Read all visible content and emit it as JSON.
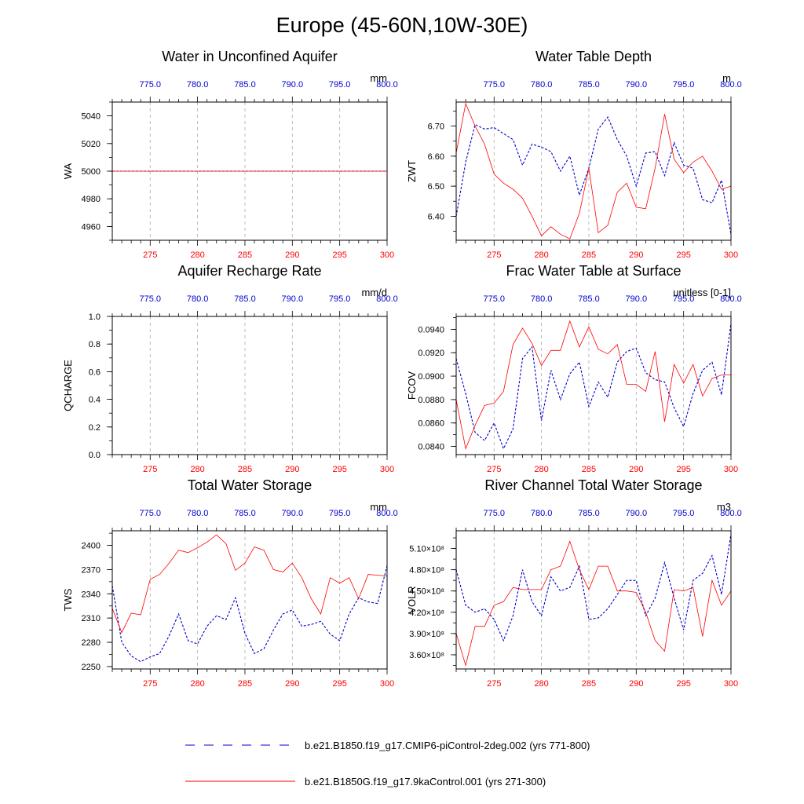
{
  "figure_title": "Europe (45-60N,10W-30E)",
  "colors": {
    "case1": "#0000cc",
    "case2": "#ff0000",
    "grid": "#aaaaaa"
  },
  "legend": [
    {
      "label": "b.e21.B1850.f19_g17.CMIP6-piControl-2deg.002 (yrs 771-800)",
      "color": "#0000cc",
      "style": "dashed"
    },
    {
      "label": "b.e21.B1850G.f19_g17.9kaControl.001 (yrs 271-300)",
      "color": "#ff0000",
      "style": "solid"
    }
  ],
  "chart_data": [
    {
      "type": "line",
      "title": "Water in Unconfined Aquifer",
      "ylabel": "WA",
      "units": "mm",
      "x_bottom": [
        271,
        272,
        273,
        274,
        275,
        276,
        277,
        278,
        279,
        280,
        281,
        282,
        283,
        284,
        285,
        286,
        287,
        288,
        289,
        290,
        291,
        292,
        293,
        294,
        295,
        296,
        297,
        298,
        299,
        300
      ],
      "x_top": [
        771,
        772,
        773,
        774,
        775,
        776,
        777,
        778,
        779,
        780,
        781,
        782,
        783,
        784,
        785,
        786,
        787,
        788,
        789,
        790,
        791,
        792,
        793,
        794,
        795,
        796,
        797,
        798,
        799,
        800
      ],
      "xlim": [
        271,
        300
      ],
      "ylim": [
        4950,
        5050
      ],
      "yticks": [
        "4960",
        "4980",
        "5000",
        "5020",
        "5040"
      ],
      "ytick_values": [
        4960,
        4980,
        5000,
        5020,
        5040
      ],
      "xticks_bottom": [
        "275",
        "280",
        "285",
        "290",
        "295",
        "300"
      ],
      "xticks_top": [
        "775.0",
        "780.0",
        "785.0",
        "790.0",
        "795.0",
        "800.0"
      ],
      "series": [
        {
          "values": [
            5000,
            5000,
            5000,
            5000,
            5000,
            5000,
            5000,
            5000,
            5000,
            5000,
            5000,
            5000,
            5000,
            5000,
            5000,
            5000,
            5000,
            5000,
            5000,
            5000,
            5000,
            5000,
            5000,
            5000,
            5000,
            5000,
            5000,
            5000,
            5000,
            5000
          ]
        },
        {
          "values": [
            5000,
            5000,
            5000,
            5000,
            5000,
            5000,
            5000,
            5000,
            5000,
            5000,
            5000,
            5000,
            5000,
            5000,
            5000,
            5000,
            5000,
            5000,
            5000,
            5000,
            5000,
            5000,
            5000,
            5000,
            5000,
            5000,
            5000,
            5000,
            5000,
            5000
          ]
        }
      ]
    },
    {
      "type": "line",
      "title": "Water Table Depth",
      "ylabel": "ZWT",
      "units": "m",
      "x_bottom": [
        271,
        272,
        273,
        274,
        275,
        276,
        277,
        278,
        279,
        280,
        281,
        282,
        283,
        284,
        285,
        286,
        287,
        288,
        289,
        290,
        291,
        292,
        293,
        294,
        295,
        296,
        297,
        298,
        299,
        300
      ],
      "x_top": [
        771,
        772,
        773,
        774,
        775,
        776,
        777,
        778,
        779,
        780,
        781,
        782,
        783,
        784,
        785,
        786,
        787,
        788,
        789,
        790,
        791,
        792,
        793,
        794,
        795,
        796,
        797,
        798,
        799,
        800
      ],
      "xlim": [
        271,
        300
      ],
      "ylim": [
        6.32,
        6.78
      ],
      "yticks": [
        "6.40",
        "6.50",
        "6.60",
        "6.70"
      ],
      "ytick_values": [
        6.4,
        6.5,
        6.6,
        6.7
      ],
      "xticks_bottom": [
        "275",
        "280",
        "285",
        "290",
        "295",
        "300"
      ],
      "xticks_top": [
        "775.0",
        "780.0",
        "785.0",
        "790.0",
        "795.0",
        "800.0"
      ],
      "series": [
        {
          "values": [
            6.4,
            6.58,
            6.705,
            6.69,
            6.695,
            6.675,
            6.655,
            6.57,
            6.64,
            6.63,
            6.615,
            6.55,
            6.6,
            6.47,
            6.56,
            6.69,
            6.73,
            6.655,
            6.6,
            6.5,
            6.61,
            6.615,
            6.535,
            6.645,
            6.57,
            6.56,
            6.455,
            6.445,
            6.52,
            6.34
          ]
        },
        {
          "values": [
            6.61,
            6.775,
            6.7,
            6.64,
            6.54,
            6.51,
            6.49,
            6.46,
            6.4,
            6.335,
            6.365,
            6.34,
            6.325,
            6.41,
            6.56,
            6.345,
            6.37,
            6.48,
            6.51,
            6.43,
            6.425,
            6.56,
            6.74,
            6.59,
            6.545,
            6.58,
            6.6,
            6.55,
            6.49,
            6.5
          ]
        }
      ]
    },
    {
      "type": "line",
      "title": "Aquifer Recharge Rate",
      "ylabel": "QCHARGE",
      "units": "mm/d",
      "x_bottom": [
        271,
        272,
        273,
        274,
        275,
        276,
        277,
        278,
        279,
        280,
        281,
        282,
        283,
        284,
        285,
        286,
        287,
        288,
        289,
        290,
        291,
        292,
        293,
        294,
        295,
        296,
        297,
        298,
        299,
        300
      ],
      "x_top": [
        771,
        772,
        773,
        774,
        775,
        776,
        777,
        778,
        779,
        780,
        781,
        782,
        783,
        784,
        785,
        786,
        787,
        788,
        789,
        790,
        791,
        792,
        793,
        794,
        795,
        796,
        797,
        798,
        799,
        800
      ],
      "xlim": [
        271,
        300
      ],
      "ylim": [
        0,
        1
      ],
      "yticks": [
        "0.0",
        "0.2",
        "0.4",
        "0.6",
        "0.8",
        "1.0"
      ],
      "ytick_values": [
        0,
        0.2,
        0.4,
        0.6,
        0.8,
        1.0
      ],
      "xticks_bottom": [
        "275",
        "280",
        "285",
        "290",
        "295",
        "300"
      ],
      "xticks_top": [
        "775.0",
        "780.0",
        "785.0",
        "790.0",
        "795.0",
        "800.0"
      ],
      "series": []
    },
    {
      "type": "line",
      "title": "Frac Water Table at Surface",
      "ylabel": "FCOV",
      "units": "unitless [0-1]",
      "x_bottom": [
        271,
        272,
        273,
        274,
        275,
        276,
        277,
        278,
        279,
        280,
        281,
        282,
        283,
        284,
        285,
        286,
        287,
        288,
        289,
        290,
        291,
        292,
        293,
        294,
        295,
        296,
        297,
        298,
        299,
        300
      ],
      "x_top": [
        771,
        772,
        773,
        774,
        775,
        776,
        777,
        778,
        779,
        780,
        781,
        782,
        783,
        784,
        785,
        786,
        787,
        788,
        789,
        790,
        791,
        792,
        793,
        794,
        795,
        796,
        797,
        798,
        799,
        800
      ],
      "xlim": [
        271,
        300
      ],
      "ylim": [
        0.0833,
        0.0951
      ],
      "yticks": [
        "0.0840",
        "0.0860",
        "0.0880",
        "0.0900",
        "0.0920",
        "0.0940"
      ],
      "ytick_values": [
        0.084,
        0.086,
        0.088,
        0.09,
        0.092,
        0.094
      ],
      "xticks_bottom": [
        "275",
        "280",
        "285",
        "290",
        "295",
        "300"
      ],
      "xticks_top": [
        "775.0",
        "780.0",
        "785.0",
        "790.0",
        "795.0",
        "800.0"
      ],
      "series": [
        {
          "values": [
            0.0915,
            0.0885,
            0.0852,
            0.0845,
            0.086,
            0.0838,
            0.0855,
            0.0915,
            0.0925,
            0.0862,
            0.0905,
            0.088,
            0.0902,
            0.0912,
            0.0874,
            0.0895,
            0.0882,
            0.0912,
            0.0921,
            0.0924,
            0.0903,
            0.0897,
            0.0895,
            0.0873,
            0.0857,
            0.0885,
            0.0905,
            0.0912,
            0.0884,
            0.0945
          ]
        },
        {
          "values": [
            0.088,
            0.0838,
            0.0858,
            0.0875,
            0.0877,
            0.0887,
            0.0927,
            0.0941,
            0.0928,
            0.0909,
            0.0922,
            0.0922,
            0.0947,
            0.0925,
            0.0942,
            0.0923,
            0.0919,
            0.0927,
            0.0893,
            0.0893,
            0.0887,
            0.0921,
            0.0861,
            0.091,
            0.0894,
            0.091,
            0.0883,
            0.0898,
            0.0901,
            0.0901
          ]
        }
      ]
    },
    {
      "type": "line",
      "title": "Total Water Storage",
      "ylabel": "TWS",
      "units": "mm",
      "x_bottom": [
        271,
        272,
        273,
        274,
        275,
        276,
        277,
        278,
        279,
        280,
        281,
        282,
        283,
        284,
        285,
        286,
        287,
        288,
        289,
        290,
        291,
        292,
        293,
        294,
        295,
        296,
        297,
        298,
        299,
        300
      ],
      "x_top": [
        771,
        772,
        773,
        774,
        775,
        776,
        777,
        778,
        779,
        780,
        781,
        782,
        783,
        784,
        785,
        786,
        787,
        788,
        789,
        790,
        791,
        792,
        793,
        794,
        795,
        796,
        797,
        798,
        799,
        800
      ],
      "xlim": [
        271,
        300
      ],
      "ylim": [
        2247,
        2418
      ],
      "yticks": [
        "2250",
        "2280",
        "2310",
        "2340",
        "2370",
        "2400"
      ],
      "ytick_values": [
        2250,
        2280,
        2310,
        2340,
        2370,
        2400
      ],
      "xticks_bottom": [
        "275",
        "280",
        "285",
        "290",
        "295",
        "300"
      ],
      "xticks_top": [
        "775.0",
        "780.0",
        "785.0",
        "790.0",
        "795.0",
        "800.0"
      ],
      "series": [
        {
          "values": [
            2350,
            2280,
            2263,
            2256,
            2262,
            2266,
            2288,
            2315,
            2282,
            2278,
            2300,
            2313,
            2308,
            2335,
            2291,
            2266,
            2272,
            2295,
            2315,
            2320,
            2300,
            2302,
            2306,
            2290,
            2282,
            2315,
            2335,
            2330,
            2328,
            2375
          ]
        },
        {
          "values": [
            2322,
            2292,
            2316,
            2314,
            2358,
            2364,
            2378,
            2394,
            2391,
            2397,
            2404,
            2413,
            2402,
            2369,
            2378,
            2398,
            2394,
            2370,
            2367,
            2378,
            2360,
            2334,
            2315,
            2360,
            2353,
            2360,
            2334,
            2364,
            2363,
            2362
          ]
        }
      ]
    },
    {
      "type": "line",
      "title": "River Channel Total Water Storage",
      "ylabel": "VOLR",
      "units": "m3",
      "x_bottom": [
        271,
        272,
        273,
        274,
        275,
        276,
        277,
        278,
        279,
        280,
        281,
        282,
        283,
        284,
        285,
        286,
        287,
        288,
        289,
        290,
        291,
        292,
        293,
        294,
        295,
        296,
        297,
        298,
        299,
        300
      ],
      "x_top": [
        771,
        772,
        773,
        774,
        775,
        776,
        777,
        778,
        779,
        780,
        781,
        782,
        783,
        784,
        785,
        786,
        787,
        788,
        789,
        790,
        791,
        792,
        793,
        794,
        795,
        796,
        797,
        798,
        799,
        800
      ],
      "xlim": [
        271,
        300
      ],
      "ylim": [
        340000000.0,
        535000000.0
      ],
      "yticks": [
        "3.60×10⁸",
        "3.90×10⁸",
        "4.20×10⁸",
        "4.50×10⁸",
        "4.80×10⁸",
        "5.10×10⁸"
      ],
      "ytick_values": [
        360000000.0,
        390000000.0,
        420000000.0,
        450000000.0,
        480000000.0,
        510000000.0
      ],
      "xticks_bottom": [
        "275",
        "280",
        "285",
        "290",
        "295",
        "300"
      ],
      "xticks_top": [
        "775.0",
        "780.0",
        "785.0",
        "790.0",
        "795.0",
        "800.0"
      ],
      "series": [
        {
          "values": [
            480000000.0,
            430000000.0,
            420000000.0,
            425000000.0,
            410000000.0,
            380000000.0,
            415000000.0,
            480000000.0,
            435000000.0,
            415000000.0,
            470000000.0,
            450000000.0,
            455000000.0,
            485000000.0,
            410000000.0,
            412000000.0,
            425000000.0,
            445000000.0,
            465000000.0,
            465000000.0,
            415000000.0,
            440000000.0,
            490000000.0,
            440000000.0,
            395000000.0,
            465000000.0,
            475000000.0,
            500000000.0,
            445000000.0,
            530000000.0
          ]
        },
        {
          "values": [
            390000000.0,
            345000000.0,
            400000000.0,
            400000000.0,
            430000000.0,
            435000000.0,
            455000000.0,
            452000000.0,
            452000000.0,
            452000000.0,
            480000000.0,
            485000000.0,
            520000000.0,
            480000000.0,
            452000000.0,
            485000000.0,
            485000000.0,
            450000000.0,
            450000000.0,
            448000000.0,
            420000000.0,
            380000000.0,
            365000000.0,
            452000000.0,
            450000000.0,
            455000000.0,
            386000000.0,
            465000000.0,
            430000000.0,
            450000000.0
          ]
        }
      ]
    }
  ]
}
